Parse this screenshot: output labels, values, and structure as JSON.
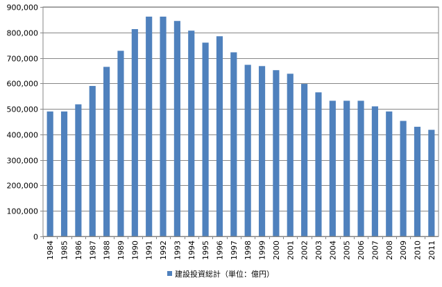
{
  "chart_data": {
    "type": "bar",
    "categories": [
      "1984",
      "1985",
      "1986",
      "1987",
      "1988",
      "1989",
      "1990",
      "1991",
      "1992",
      "1993",
      "1994",
      "1995",
      "1996",
      "1997",
      "1998",
      "1999",
      "2000",
      "2001",
      "2002",
      "2003",
      "2004",
      "2005",
      "2006",
      "2007",
      "2008",
      "2009",
      "2010",
      "2011"
    ],
    "series": [
      {
        "name": "建設投資総計（単位：億円）",
        "color": "#4F81BD",
        "values": [
          490000,
          490000,
          518000,
          590000,
          665000,
          728000,
          813000,
          862000,
          862000,
          845000,
          807000,
          760000,
          785000,
          722000,
          673000,
          668000,
          652000,
          638000,
          598000,
          565000,
          532000,
          532000,
          532000,
          510000,
          490000,
          453000,
          430000,
          418000
        ]
      }
    ],
    "title": "",
    "xlabel": "",
    "ylabel": "",
    "ylim": [
      0,
      900000
    ],
    "yticks": [
      "0",
      "100,000",
      "200,000",
      "300,000",
      "400,000",
      "500,000",
      "600,000",
      "700,000",
      "800,000",
      "900,000"
    ],
    "grid": true,
    "legend": "bottom"
  }
}
